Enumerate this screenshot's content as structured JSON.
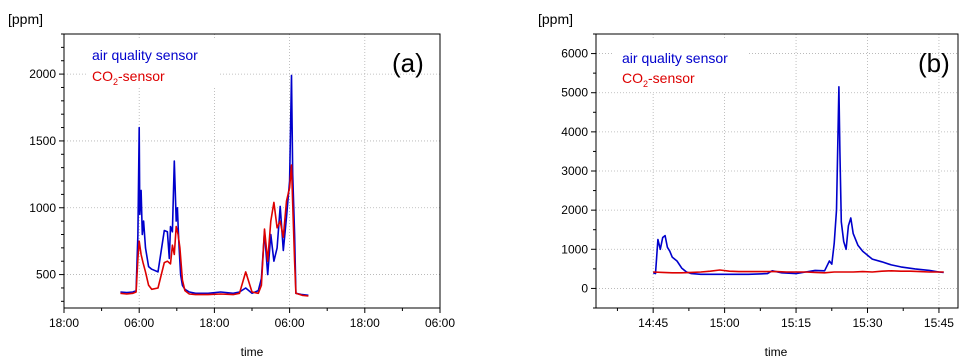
{
  "chart_data": [
    {
      "panel": "(a)",
      "type": "line",
      "ylabel": "[ppm]",
      "xlabel": "time",
      "xticks": [
        "18:00",
        "06:00",
        "18:00",
        "06:00",
        "18:00",
        "06:00"
      ],
      "xlim_hours": [
        0,
        60
      ],
      "yticks": [
        500,
        1000,
        1500,
        2000
      ],
      "ylim": [
        250,
        2300
      ],
      "grid": true,
      "legend_position": "top-left",
      "series": [
        {
          "name": "air quality sensor",
          "color": "#0000cc",
          "x": [
            9,
            10,
            11,
            11.5,
            11.8,
            12,
            12.1,
            12.3,
            12.5,
            12.7,
            13,
            13.5,
            14,
            15,
            16,
            16.5,
            16.8,
            17,
            17.3,
            17.6,
            17.9,
            18.1,
            18.3,
            18.6,
            18.9,
            19.3,
            20,
            21,
            23,
            25,
            27,
            28,
            29,
            30,
            31,
            31.5,
            32,
            32.5,
            33,
            33.5,
            34,
            34.5,
            35,
            35.5,
            36,
            36.3,
            36.5,
            36.8,
            37,
            38,
            39
          ],
          "y": [
            370,
            365,
            370,
            380,
            800,
            1600,
            950,
            1130,
            800,
            900,
            700,
            560,
            540,
            520,
            830,
            820,
            620,
            860,
            820,
            1350,
            900,
            1000,
            760,
            500,
            420,
            390,
            370,
            360,
            360,
            370,
            360,
            370,
            400,
            360,
            380,
            470,
            820,
            500,
            800,
            600,
            700,
            1010,
            680,
            930,
            1200,
            1990,
            1250,
            800,
            360,
            350,
            345
          ]
        },
        {
          "name": "CO2-sensor",
          "color": "#dd0000",
          "x": [
            9,
            10,
            11,
            11.5,
            11.8,
            12,
            12.3,
            12.6,
            13,
            13.5,
            14,
            15,
            16,
            16.5,
            17,
            17.3,
            17.6,
            17.9,
            18.2,
            18.5,
            18.9,
            19.3,
            20,
            21,
            23,
            25,
            27,
            28,
            29,
            30,
            31,
            31.5,
            32,
            32.5,
            33,
            33.5,
            34,
            34.5,
            35,
            35.5,
            36,
            36.3,
            36.5,
            36.8,
            37,
            38,
            39
          ],
          "y": [
            360,
            355,
            360,
            370,
            620,
            750,
            650,
            590,
            520,
            420,
            390,
            400,
            590,
            600,
            580,
            720,
            650,
            860,
            800,
            700,
            460,
            380,
            355,
            350,
            350,
            355,
            350,
            360,
            520,
            370,
            360,
            420,
            840,
            600,
            900,
            1040,
            850,
            900,
            780,
            1050,
            1150,
            1320,
            1030,
            600,
            360,
            345,
            340
          ]
        }
      ]
    },
    {
      "panel": "(b)",
      "type": "line",
      "ylabel": "[ppm]",
      "xlabel": "time",
      "xticks": [
        "14:45",
        "15:00",
        "15:15",
        "15:30",
        "15:45"
      ],
      "xlim_minutes": [
        -12,
        64
      ],
      "yticks": [
        0,
        1000,
        2000,
        3000,
        4000,
        5000,
        6000
      ],
      "ylim": [
        -500,
        6500
      ],
      "grid": true,
      "legend_position": "top-left",
      "series": [
        {
          "name": "air quality sensor",
          "color": "#0000cc",
          "x": [
            0,
            0.5,
            1,
            1.5,
            2,
            2.5,
            3,
            3.5,
            4,
            5,
            6,
            7,
            8,
            10,
            15,
            20,
            24,
            25,
            27,
            30,
            32,
            34,
            36,
            37,
            37.5,
            38,
            38.5,
            39,
            39.2,
            39.5,
            40,
            40.5,
            41,
            41.5,
            42,
            43,
            44,
            45,
            46,
            48,
            50,
            52,
            55,
            58,
            60,
            61
          ],
          "y": [
            400,
            380,
            1250,
            1000,
            1300,
            1350,
            1050,
            950,
            800,
            700,
            520,
            420,
            380,
            360,
            360,
            360,
            380,
            450,
            400,
            380,
            420,
            460,
            450,
            700,
            620,
            1150,
            2000,
            5150,
            3500,
            1700,
            1200,
            1000,
            1600,
            1800,
            1400,
            1100,
            950,
            850,
            750,
            680,
            600,
            550,
            500,
            460,
            420,
            410
          ]
        },
        {
          "name": "CO2-sensor",
          "color": "#dd0000",
          "x": [
            0,
            2,
            4,
            6,
            8,
            10,
            12,
            14,
            16,
            18,
            20,
            22,
            24,
            26,
            28,
            30,
            32,
            34,
            36,
            38,
            40,
            42,
            44,
            46,
            48,
            50,
            52,
            54,
            56,
            58,
            60,
            61
          ],
          "y": [
            420,
            410,
            400,
            400,
            410,
            420,
            440,
            470,
            440,
            430,
            430,
            430,
            430,
            430,
            420,
            420,
            420,
            410,
            400,
            420,
            420,
            420,
            430,
            420,
            440,
            450,
            440,
            440,
            430,
            420,
            420,
            420
          ]
        }
      ]
    }
  ],
  "panels": [
    {
      "ylabel": "[ppm]",
      "xlabel": "time",
      "tag": "(a)",
      "legend": {
        "series1_label": "air quality sensor",
        "series2_prefix": "CO",
        "series2_sub": "2",
        "series2_suffix": "-sensor"
      }
    },
    {
      "ylabel": "[ppm]",
      "xlabel": "time",
      "tag": "(b)",
      "legend": {
        "series1_label": "air quality sensor",
        "series2_prefix": "CO",
        "series2_sub": "2",
        "series2_suffix": "-sensor"
      }
    }
  ],
  "colors": {
    "air_quality": "#0000cc",
    "co2": "#dd0000",
    "grid": "#b0b0b0"
  }
}
